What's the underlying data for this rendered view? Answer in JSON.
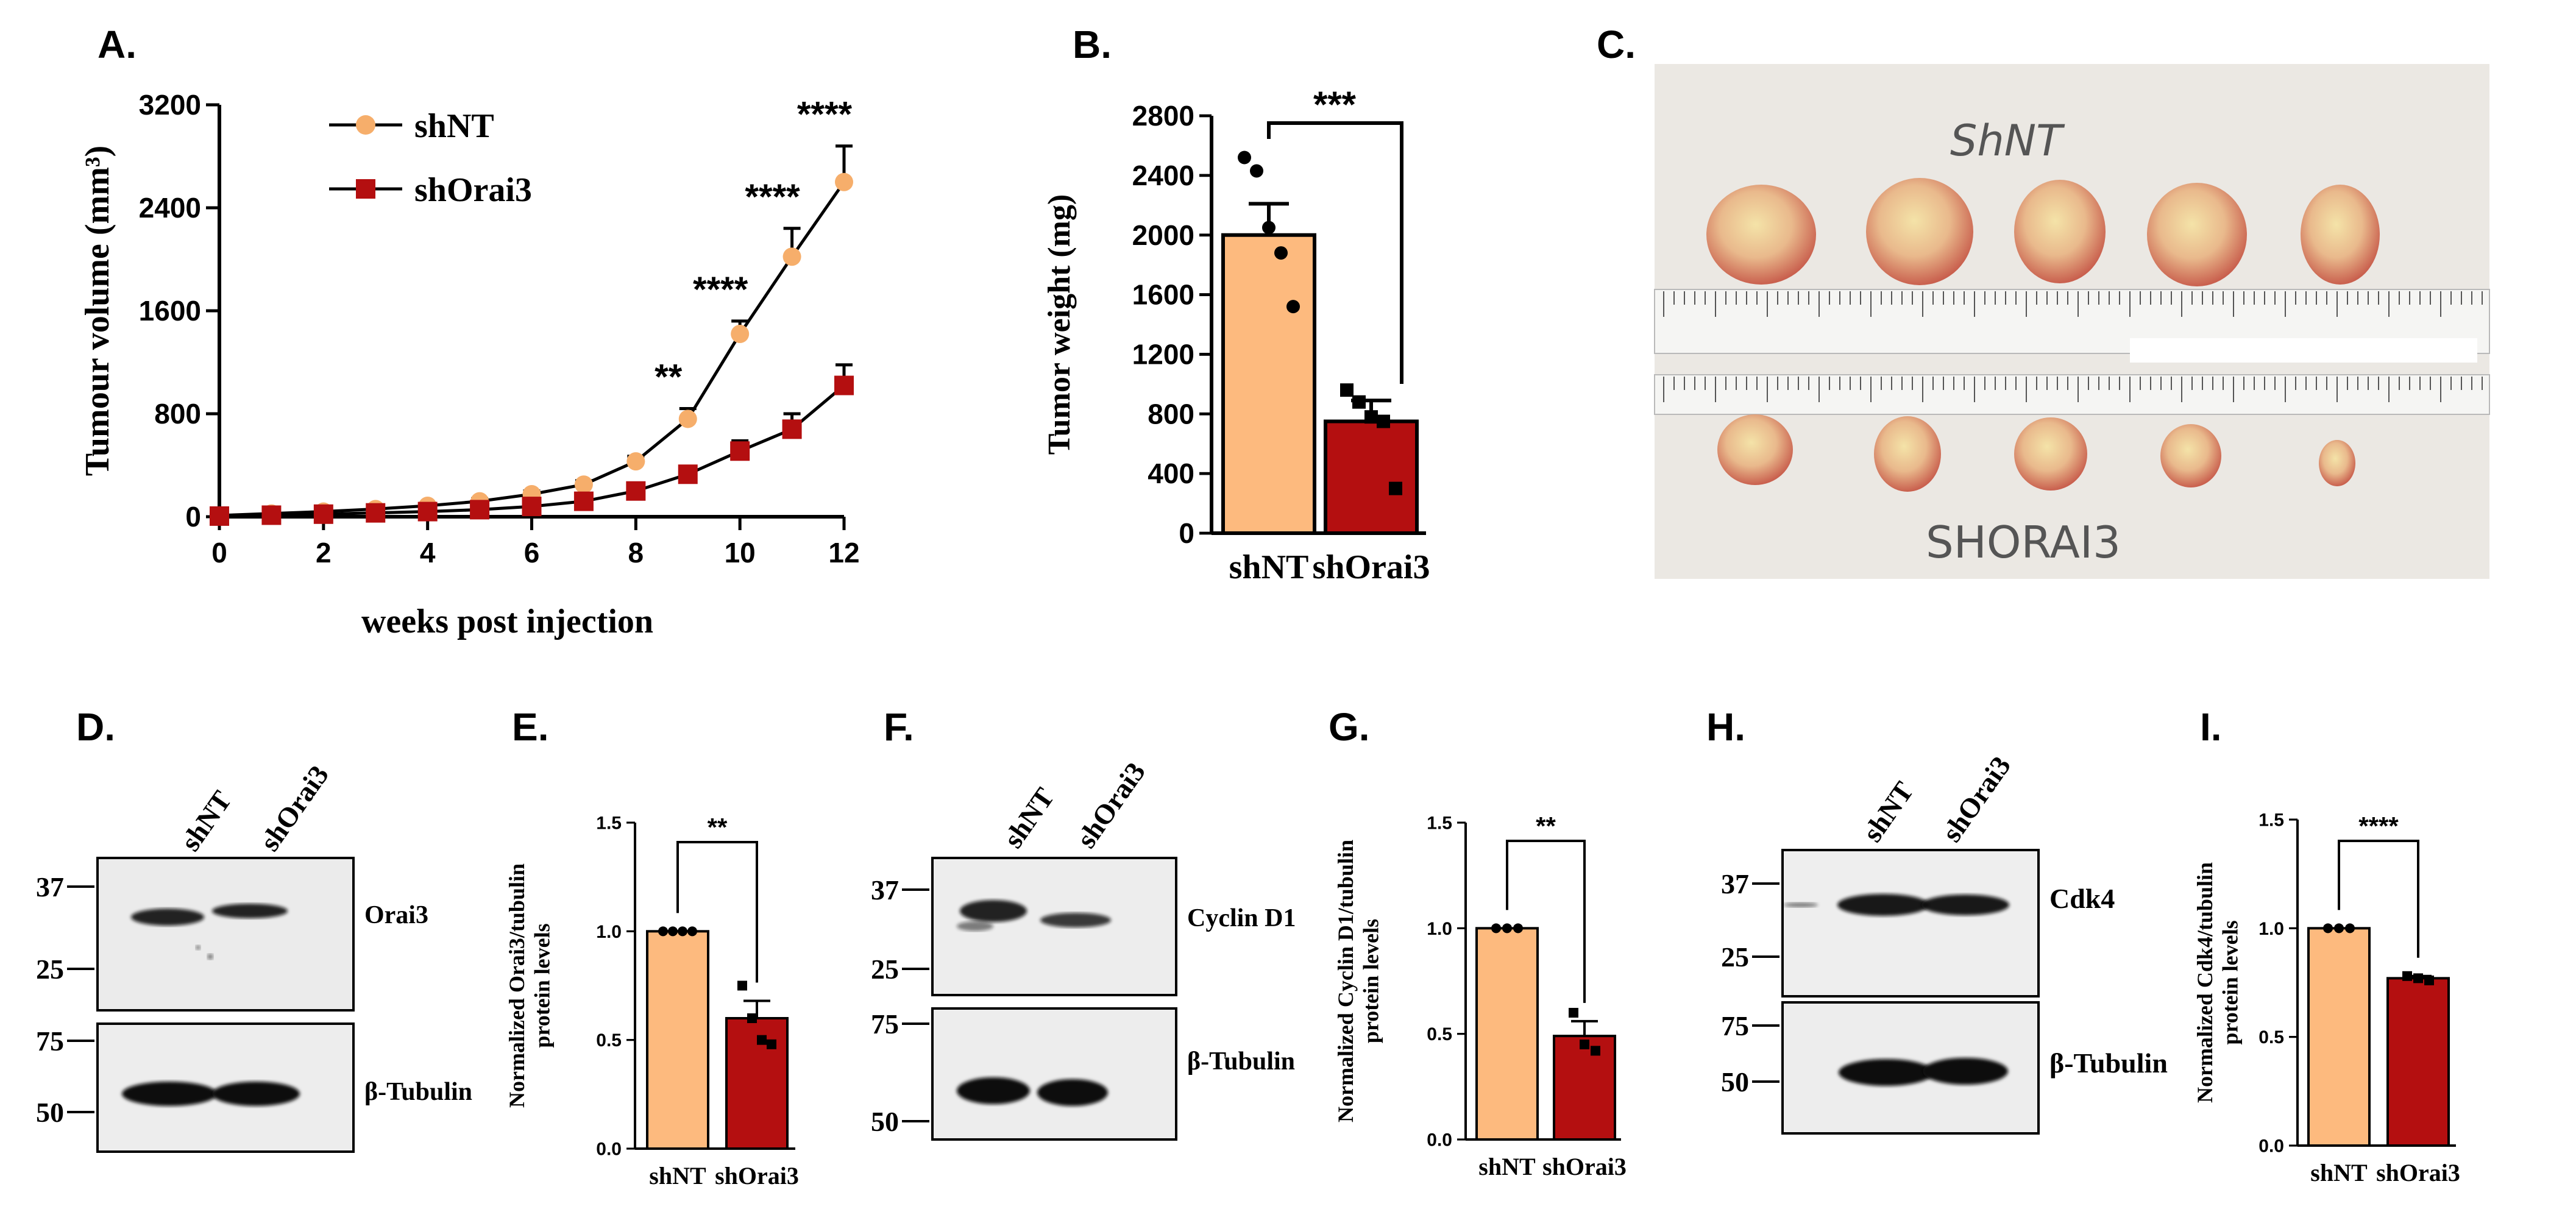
{
  "colors": {
    "shNT": "#FDBA7E",
    "shNT_line": "#F6AE6B",
    "shOrai3": "#B40F10",
    "axis": "#000000"
  },
  "panels": {
    "A": {
      "letter": "A."
    },
    "B": {
      "letter": "B."
    },
    "C": {
      "letter": "C.",
      "label_top": "ShNT",
      "label_bottom": "SHORAI3"
    },
    "D": {
      "letter": "D.",
      "lanes": [
        "shNT",
        "shOrai3"
      ],
      "markers_top": [
        "37",
        "25"
      ],
      "markers_bottom": [
        "75",
        "50"
      ],
      "band_top": "Orai3",
      "band_bottom": "β-Tubulin"
    },
    "E": {
      "letter": "E."
    },
    "F": {
      "letter": "F.",
      "lanes": [
        "shNT",
        "shOrai3"
      ],
      "markers_top": [
        "37",
        "25"
      ],
      "markers_bottom": [
        "75",
        "50"
      ],
      "band_top": "Cyclin D1",
      "band_bottom": "β-Tubulin"
    },
    "G": {
      "letter": "G."
    },
    "H": {
      "letter": "H.",
      "lanes": [
        "shNT",
        "shOrai3"
      ],
      "markers_top": [
        "37",
        "25"
      ],
      "markers_bottom": [
        "75",
        "50"
      ],
      "band_top": "Cdk4",
      "band_bottom": "β-Tubulin"
    },
    "I": {
      "letter": "I."
    }
  },
  "chart_data": [
    {
      "id": "A",
      "type": "line",
      "xlabel": "weeks post injection",
      "ylabel": "Tumour volume (mm³)",
      "xlim": [
        0,
        12
      ],
      "ylim": [
        0,
        3200
      ],
      "xticks": [
        "0",
        "2",
        "4",
        "6",
        "8",
        "10",
        "12"
      ],
      "yticks": [
        "0",
        "800",
        "1600",
        "2400",
        "3200"
      ],
      "legend_position": "top-left",
      "x": [
        0,
        1,
        2,
        3,
        4,
        5,
        6,
        7,
        8,
        9,
        10,
        11,
        12
      ],
      "series": [
        {
          "name": "shNT",
          "values": [
            10,
            25,
            40,
            60,
            85,
            120,
            175,
            250,
            430,
            760,
            1420,
            2020,
            2600
          ],
          "errors": [
            5,
            8,
            10,
            12,
            15,
            20,
            25,
            30,
            40,
            80,
            100,
            220,
            280
          ]
        },
        {
          "name": "shOrai3",
          "values": [
            5,
            12,
            20,
            30,
            40,
            55,
            80,
            120,
            200,
            330,
            510,
            680,
            1020
          ],
          "errors": [
            3,
            5,
            7,
            9,
            10,
            12,
            15,
            25,
            30,
            40,
            80,
            120,
            160
          ]
        }
      ],
      "annotations": [
        {
          "x": 9,
          "text": "**"
        },
        {
          "x": 10,
          "text": "****"
        },
        {
          "x": 11,
          "text": "****"
        },
        {
          "x": 12,
          "text": "****"
        }
      ]
    },
    {
      "id": "B",
      "type": "bar",
      "ylabel": "Tumor weight (mg)",
      "ylim": [
        0,
        2800
      ],
      "yticks": [
        "0",
        "400",
        "800",
        "1200",
        "1600",
        "2000",
        "2400",
        "2800"
      ],
      "categories": [
        "shNT",
        "shOrai3"
      ],
      "values": [
        2000,
        750
      ],
      "errors": [
        210,
        140
      ],
      "points": [
        [
          2520,
          2430,
          2050,
          1880,
          1520
        ],
        [
          960,
          880,
          780,
          750,
          300
        ]
      ],
      "significance": "***"
    },
    {
      "id": "E",
      "type": "bar",
      "ylabel": "Normalized Orai3/tubulin protein levels",
      "ylim": [
        0,
        1.5
      ],
      "yticks": [
        "0.0",
        "0.5",
        "1.0",
        "1.5"
      ],
      "categories": [
        "shNT",
        "shOrai3"
      ],
      "values": [
        1.0,
        0.6
      ],
      "errors": [
        0,
        0.08
      ],
      "points": [
        [
          1.0,
          1.0,
          1.0,
          1.0
        ],
        [
          0.75,
          0.6,
          0.5,
          0.48
        ]
      ],
      "significance": "**"
    },
    {
      "id": "G",
      "type": "bar",
      "ylabel": "Normalized Cyclin D1/tubulin protein levels",
      "ylim": [
        0,
        1.5
      ],
      "yticks": [
        "0.0",
        "0.5",
        "1.0",
        "1.5"
      ],
      "categories": [
        "shNT",
        "shOrai3"
      ],
      "values": [
        1.0,
        0.49
      ],
      "errors": [
        0,
        0.07
      ],
      "points": [
        [
          1.0,
          1.0,
          1.0
        ],
        [
          0.6,
          0.45,
          0.42
        ]
      ],
      "significance": "**"
    },
    {
      "id": "I",
      "type": "bar",
      "ylabel": "Normalized Cdk4/tubulin protein levels",
      "ylim": [
        0,
        1.5
      ],
      "yticks": [
        "0.0",
        "0.5",
        "1.0",
        "1.5"
      ],
      "categories": [
        "shNT",
        "shOrai3"
      ],
      "values": [
        1.0,
        0.77
      ],
      "errors": [
        0,
        0.01
      ],
      "points": [
        [
          1.0,
          1.0,
          1.0
        ],
        [
          0.78,
          0.77,
          0.76
        ]
      ],
      "significance": "****"
    }
  ]
}
